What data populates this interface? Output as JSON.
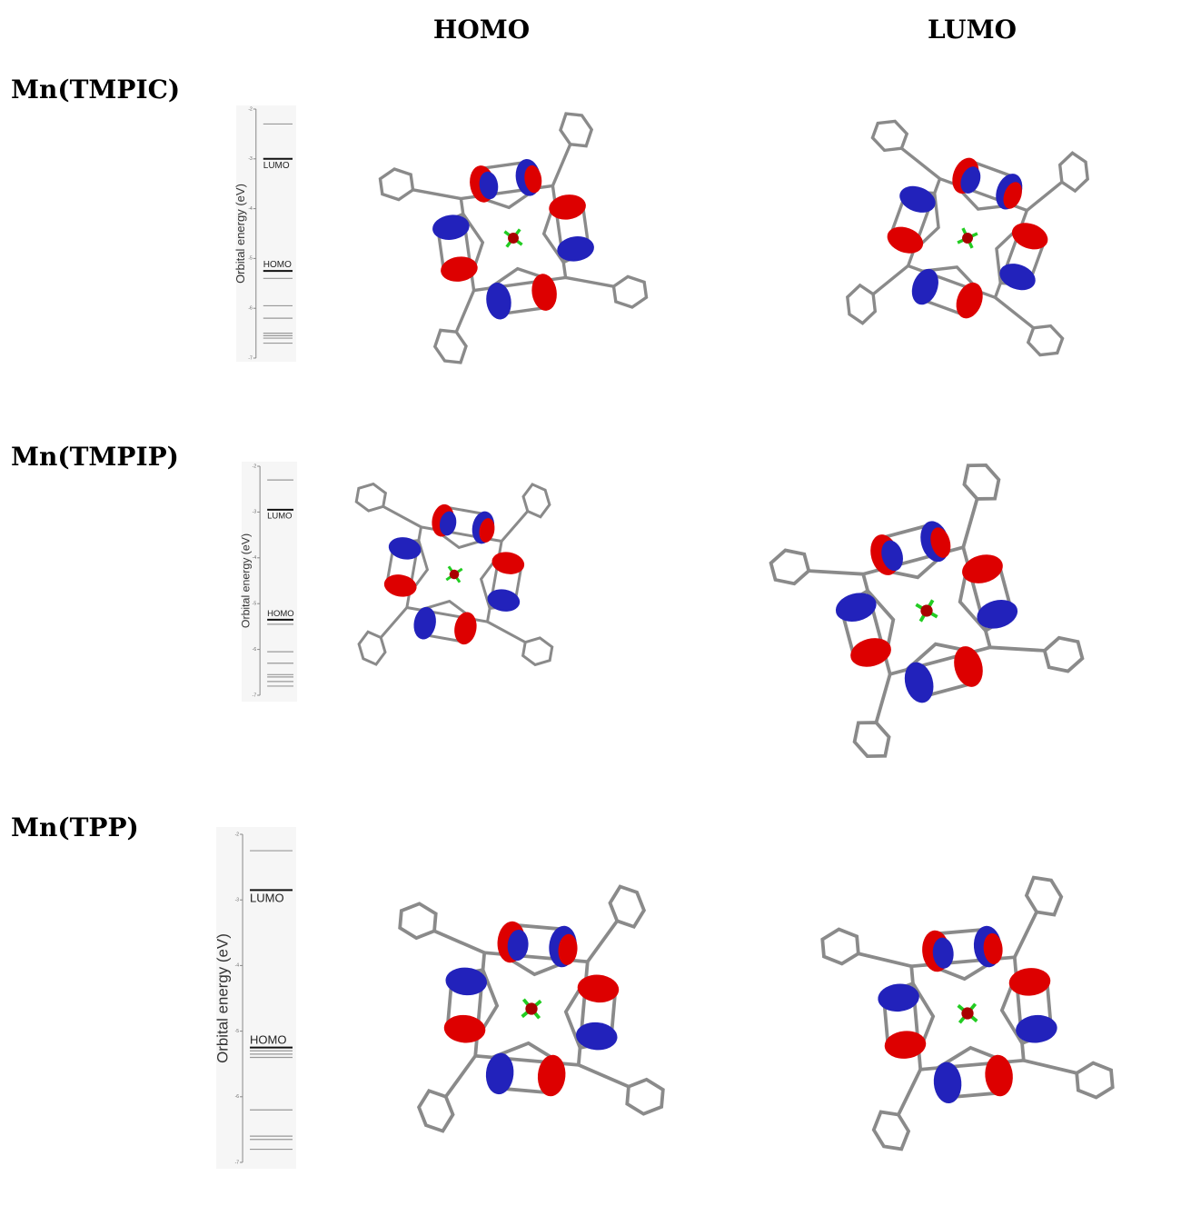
{
  "columns": [
    "HOMO",
    "LUMO"
  ],
  "rows": [
    {
      "label": "Mn(TMPIC)",
      "diagram": {
        "axis_label": "Orbital energy (eV)",
        "ylim": [
          -2,
          -7
        ],
        "yticks": [
          -2,
          -3,
          -4,
          -5,
          -6,
          -7
        ],
        "lumo": {
          "label": "LUMO",
          "value": -3.0
        },
        "homo": {
          "label": "HOMO",
          "value": -5.25
        },
        "levels": [
          -2.3,
          -5.4,
          -5.95,
          -6.2,
          -6.5,
          -6.55,
          -6.6,
          -6.7
        ]
      }
    },
    {
      "label": "Mn(TMPIP)",
      "diagram": {
        "axis_label": "Orbital energy (eV)",
        "ylim": [
          -2,
          -7
        ],
        "yticks": [
          -2,
          -3,
          -4,
          -5,
          -6,
          -7
        ],
        "lumo": {
          "label": "LUMO",
          "value": -2.95
        },
        "homo": {
          "label": "HOMO",
          "value": -5.35
        },
        "levels": [
          -2.3,
          -5.45,
          -6.05,
          -6.3,
          -6.55,
          -6.6,
          -6.7,
          -6.8
        ]
      }
    },
    {
      "label": "Mn(TPP)",
      "diagram": {
        "axis_label": "Orbital energy (eV)",
        "ylim": [
          -2,
          -7
        ],
        "yticks": [
          -2,
          -3,
          -4,
          -5,
          -6,
          -7
        ],
        "lumo": {
          "label": "LUMO",
          "value": -2.85
        },
        "homo": {
          "label": "HOMO",
          "value": -5.25
        },
        "levels": [
          -2.25,
          -5.3,
          -5.35,
          -5.4,
          -6.2,
          -6.6,
          -6.65,
          -6.8
        ]
      }
    }
  ]
}
